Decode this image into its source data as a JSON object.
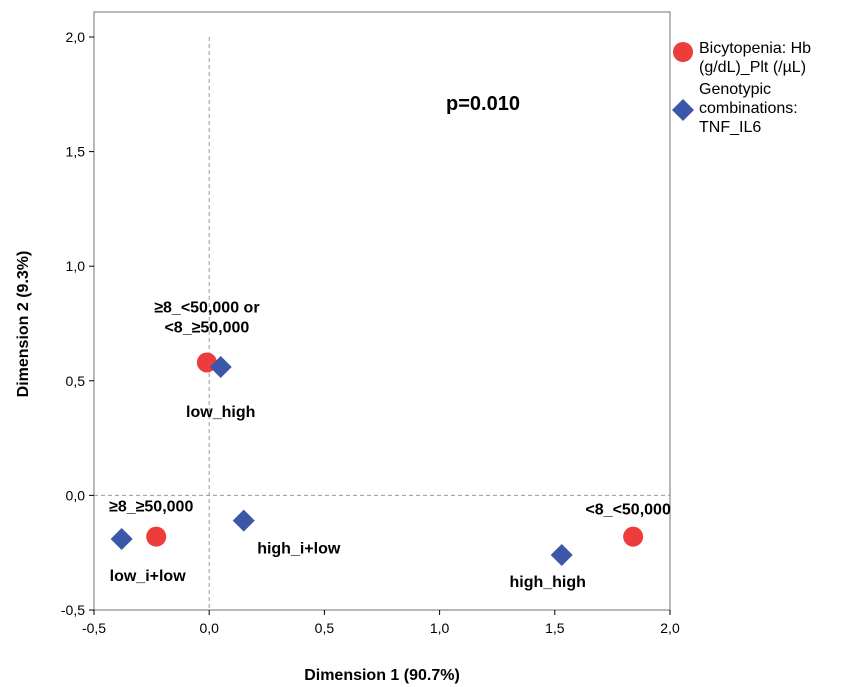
{
  "chart_data": {
    "type": "scatter",
    "xlabel": "Dimension 1 (90.7%)",
    "ylabel": "Dimension 2 (9.3%)",
    "xlim": [
      -0.5,
      2.0
    ],
    "ylim": [
      -0.5,
      2.0
    ],
    "xticks": [
      "-0,5",
      "0,0",
      "0,5",
      "1,0",
      "1,5",
      "2,0"
    ],
    "yticks": [
      "-0,5",
      "0,0",
      "0,5",
      "1,0",
      "1,5",
      "2,0"
    ],
    "grid": false,
    "reference_lines": {
      "x": 0,
      "y": 0
    },
    "annotation": "p=0.010",
    "legend_position": "right",
    "series": [
      {
        "name": "Bicytopenia: Hb (g/dL)_Plt (/µL)",
        "legend_lines": [
          "Bicytopenia: Hb",
          "(g/dL)_Plt (/µL)"
        ],
        "marker": "circle",
        "color": "#ee3b3b",
        "points": [
          {
            "x": -0.01,
            "y": 0.58,
            "label_lines": [
              "≥8_<50,000 or",
              "<8_≥50,000"
            ]
          },
          {
            "x": -0.23,
            "y": -0.18,
            "label_lines": [
              "≥8_≥50,000"
            ]
          },
          {
            "x": 1.84,
            "y": -0.18,
            "label_lines": [
              "<8_<50,000"
            ]
          }
        ]
      },
      {
        "name": "Genotypic combinations: TNF_IL6",
        "legend_lines": [
          "Genotypic",
          "combinations:",
          "TNF_IL6"
        ],
        "marker": "diamond",
        "color": "#3c57a8",
        "points": [
          {
            "x": 0.05,
            "y": 0.56,
            "label_lines": [
              "low_high"
            ]
          },
          {
            "x": 0.15,
            "y": -0.11,
            "label_lines": [
              "high_i+low"
            ]
          },
          {
            "x": -0.38,
            "y": -0.19,
            "label_lines": [
              "low_i+low"
            ]
          },
          {
            "x": 1.53,
            "y": -0.26,
            "label_lines": [
              "high_high"
            ]
          }
        ]
      }
    ]
  }
}
